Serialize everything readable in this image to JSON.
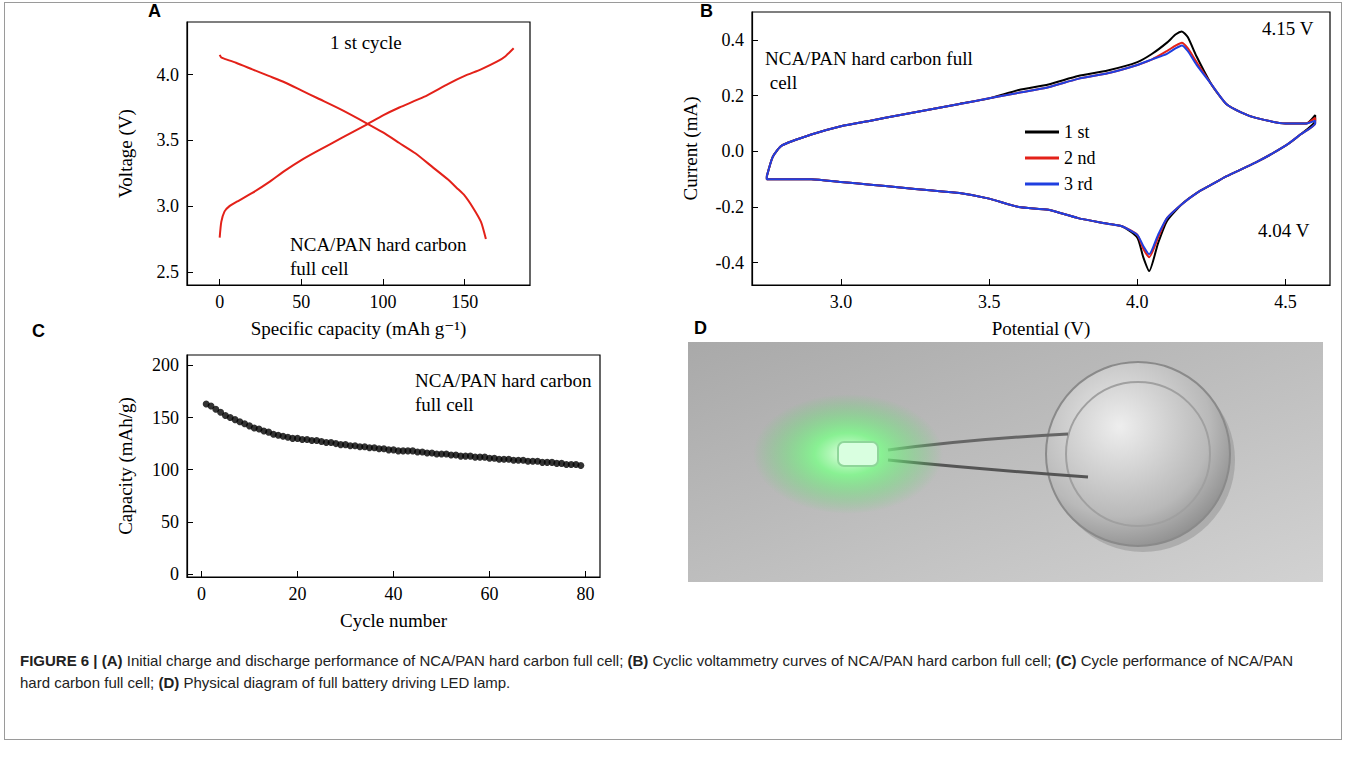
{
  "chart_data": [
    {
      "panel": "A",
      "type": "line",
      "xlabel": "Specific capacity (mAh g⁻¹)",
      "ylabel": "Voltage (V)",
      "annotations": [
        "1 st cycle",
        "NCA/PAN hard carbon full cell"
      ],
      "xlim": [
        -20,
        190
      ],
      "xticks": [
        0,
        50,
        100,
        150
      ],
      "ylim": [
        2.4,
        4.4
      ],
      "yticks": [
        2.5,
        {
          "value": 3,
          "label": "3.0"
        },
        3.5,
        {
          "value": 4,
          "label": "4.0"
        }
      ],
      "grid": false,
      "series": [
        {
          "color": "#e32119",
          "x": [
            0,
            1,
            3,
            6,
            10,
            20,
            30,
            40,
            50,
            60,
            75,
            90,
            100,
            110,
            125,
            140,
            150,
            160,
            170,
            175,
            180
          ],
          "values": [
            2.76,
            2.88,
            2.96,
            3.0,
            3.03,
            3.1,
            3.18,
            3.27,
            3.35,
            3.42,
            3.52,
            3.62,
            3.69,
            3.75,
            3.83,
            3.93,
            3.99,
            4.04,
            4.1,
            4.14,
            4.2
          ]
        },
        {
          "color": "#e32119",
          "x": [
            0,
            1,
            3,
            10,
            20,
            30,
            40,
            50,
            60,
            75,
            90,
            100,
            110,
            120,
            130,
            140,
            145,
            150,
            155,
            160,
            163
          ],
          "values": [
            4.15,
            4.13,
            4.12,
            4.09,
            4.04,
            3.99,
            3.94,
            3.88,
            3.82,
            3.73,
            3.63,
            3.56,
            3.48,
            3.4,
            3.3,
            3.2,
            3.14,
            3.08,
            2.99,
            2.88,
            2.75
          ]
        }
      ]
    },
    {
      "panel": "B",
      "type": "line",
      "xlabel": "Potential (V)",
      "ylabel": "Current (mA)",
      "annotations": [
        "NCA/PAN hard carbon full cell",
        "4.15 V",
        "4.04 V"
      ],
      "xlim": [
        2.7,
        4.65
      ],
      "xticks": [
        {
          "value": 3,
          "label": "3.0"
        },
        3.5,
        {
          "value": 4,
          "label": "4.0"
        },
        4.5
      ],
      "ylim": [
        -0.48,
        0.5
      ],
      "yticks": [
        -0.4,
        -0.2,
        {
          "value": 0,
          "label": "0.0"
        },
        0.2,
        0.4
      ],
      "grid": false,
      "legend": "center",
      "series": [
        {
          "name": "1 st",
          "color": "#000000",
          "x": [
            2.75,
            2.77,
            2.8,
            2.9,
            3.0,
            3.1,
            3.2,
            3.3,
            3.4,
            3.5,
            3.6,
            3.7,
            3.8,
            3.9,
            4.0,
            4.05,
            4.1,
            4.13,
            4.15,
            4.17,
            4.2,
            4.25,
            4.3,
            4.35,
            4.4,
            4.5,
            4.57,
            4.6,
            4.6,
            4.55,
            4.5,
            4.4,
            4.3,
            4.25,
            4.2,
            4.15,
            4.1,
            4.07,
            4.04,
            4.02,
            4.0,
            3.95,
            3.9,
            3.8,
            3.7,
            3.6,
            3.5,
            3.4,
            3.3,
            3.2,
            3.1,
            3.0,
            2.9,
            2.8,
            2.75,
            2.75
          ],
          "values": [
            -0.09,
            -0.02,
            0.02,
            0.06,
            0.09,
            0.11,
            0.13,
            0.15,
            0.17,
            0.19,
            0.22,
            0.24,
            0.27,
            0.29,
            0.32,
            0.35,
            0.39,
            0.42,
            0.43,
            0.41,
            0.34,
            0.24,
            0.17,
            0.14,
            0.12,
            0.1,
            0.1,
            0.13,
            0.11,
            0.06,
            0.02,
            -0.04,
            -0.09,
            -0.12,
            -0.15,
            -0.19,
            -0.25,
            -0.33,
            -0.43,
            -0.38,
            -0.31,
            -0.27,
            -0.26,
            -0.24,
            -0.21,
            -0.2,
            -0.17,
            -0.15,
            -0.14,
            -0.13,
            -0.12,
            -0.11,
            -0.1,
            -0.1,
            -0.1,
            -0.09
          ]
        },
        {
          "name": "2 nd",
          "color": "#e32119",
          "x": [
            2.75,
            2.77,
            2.8,
            2.9,
            3.0,
            3.1,
            3.2,
            3.3,
            3.4,
            3.5,
            3.6,
            3.7,
            3.8,
            3.9,
            4.0,
            4.05,
            4.1,
            4.13,
            4.15,
            4.17,
            4.2,
            4.25,
            4.3,
            4.35,
            4.4,
            4.5,
            4.57,
            4.6,
            4.6,
            4.55,
            4.5,
            4.4,
            4.3,
            4.25,
            4.2,
            4.15,
            4.1,
            4.07,
            4.04,
            4.02,
            4.0,
            3.95,
            3.9,
            3.8,
            3.7,
            3.6,
            3.5,
            3.4,
            3.3,
            3.2,
            3.1,
            3.0,
            2.9,
            2.8,
            2.75,
            2.75
          ],
          "values": [
            -0.09,
            -0.02,
            0.02,
            0.06,
            0.09,
            0.11,
            0.13,
            0.15,
            0.17,
            0.19,
            0.21,
            0.23,
            0.26,
            0.28,
            0.31,
            0.33,
            0.36,
            0.38,
            0.39,
            0.37,
            0.32,
            0.24,
            0.17,
            0.14,
            0.12,
            0.1,
            0.1,
            0.12,
            0.1,
            0.06,
            0.02,
            -0.04,
            -0.09,
            -0.12,
            -0.15,
            -0.19,
            -0.24,
            -0.31,
            -0.38,
            -0.35,
            -0.3,
            -0.27,
            -0.26,
            -0.24,
            -0.21,
            -0.2,
            -0.17,
            -0.15,
            -0.14,
            -0.13,
            -0.12,
            -0.11,
            -0.1,
            -0.1,
            -0.1,
            -0.09
          ]
        },
        {
          "name": "3 rd",
          "color": "#1f3fe0",
          "x": [
            2.75,
            2.77,
            2.8,
            2.9,
            3.0,
            3.1,
            3.2,
            3.3,
            3.4,
            3.5,
            3.6,
            3.7,
            3.8,
            3.9,
            4.0,
            4.05,
            4.1,
            4.13,
            4.15,
            4.17,
            4.2,
            4.25,
            4.3,
            4.35,
            4.4,
            4.5,
            4.57,
            4.6,
            4.6,
            4.55,
            4.5,
            4.4,
            4.3,
            4.25,
            4.2,
            4.15,
            4.1,
            4.07,
            4.04,
            4.02,
            4.0,
            3.95,
            3.9,
            3.8,
            3.7,
            3.6,
            3.5,
            3.4,
            3.3,
            3.2,
            3.1,
            3.0,
            2.9,
            2.8,
            2.75,
            2.75
          ],
          "values": [
            -0.09,
            -0.02,
            0.02,
            0.06,
            0.09,
            0.11,
            0.13,
            0.15,
            0.17,
            0.19,
            0.21,
            0.23,
            0.26,
            0.28,
            0.31,
            0.33,
            0.35,
            0.37,
            0.38,
            0.36,
            0.31,
            0.24,
            0.17,
            0.14,
            0.12,
            0.1,
            0.1,
            0.11,
            0.1,
            0.06,
            0.02,
            -0.04,
            -0.09,
            -0.12,
            -0.15,
            -0.19,
            -0.24,
            -0.3,
            -0.37,
            -0.34,
            -0.3,
            -0.27,
            -0.26,
            -0.24,
            -0.21,
            -0.2,
            -0.17,
            -0.15,
            -0.14,
            -0.13,
            -0.12,
            -0.11,
            -0.1,
            -0.1,
            -0.1,
            -0.09
          ]
        }
      ]
    },
    {
      "panel": "C",
      "type": "scatter",
      "xlabel": "Cycle number",
      "ylabel": "Capacity (mAh/g)",
      "annotations": [
        "NCA/PAN hard carbon full cell"
      ],
      "xlim": [
        -3,
        83
      ],
      "xticks": [
        0,
        20,
        40,
        60,
        80
      ],
      "ylim": [
        -3,
        210
      ],
      "yticks": [
        0,
        50,
        100,
        150,
        200
      ],
      "grid": false,
      "series": [
        {
          "color": "#000000",
          "marker": "circle",
          "x": [
            1,
            2,
            3,
            4,
            5,
            6,
            7,
            8,
            9,
            10,
            11,
            12,
            13,
            14,
            15,
            16,
            17,
            18,
            19,
            20,
            21,
            22,
            23,
            24,
            25,
            26,
            27,
            28,
            29,
            30,
            31,
            32,
            33,
            34,
            35,
            36,
            37,
            38,
            39,
            40,
            41,
            42,
            43,
            44,
            45,
            46,
            47,
            48,
            49,
            50,
            51,
            52,
            53,
            54,
            55,
            56,
            57,
            58,
            59,
            60,
            61,
            62,
            63,
            64,
            65,
            66,
            67,
            68,
            69,
            70,
            71,
            72,
            73,
            74,
            75,
            76,
            77,
            78,
            79
          ],
          "values": [
            163,
            161,
            158,
            155,
            152,
            150,
            148,
            146,
            144,
            142,
            140,
            139,
            137,
            136,
            134,
            133,
            132,
            131,
            130,
            130,
            129,
            129,
            128,
            128,
            127,
            126,
            126,
            125,
            124,
            124,
            123,
            123,
            122,
            122,
            121,
            121,
            120,
            120,
            119,
            119,
            118,
            118,
            118,
            118,
            117,
            117,
            116,
            116,
            115,
            115,
            115,
            114,
            114,
            113,
            113,
            113,
            112,
            112,
            112,
            111,
            111,
            110,
            110,
            110,
            109,
            109,
            109,
            108,
            108,
            108,
            107,
            107,
            107,
            106,
            106,
            105,
            105,
            105,
            104
          ]
        }
      ]
    }
  ],
  "photo": {
    "panel": "D"
  },
  "caption": {
    "label": "FIGURE 6 |",
    "parts": [
      {
        "panel": "(A)",
        "text": "Initial charge and discharge performance of NCA/PAN hard carbon full cell;"
      },
      {
        "panel": "(B)",
        "text": "Cyclic voltammetry curves of NCA/PAN hard carbon full cell;"
      },
      {
        "panel": "(C)",
        "text": "Cycle performance of NCA/PAN hard carbon full cell;"
      },
      {
        "panel": "(D)",
        "text": "Physical diagram of full battery driving LED lamp."
      }
    ]
  }
}
